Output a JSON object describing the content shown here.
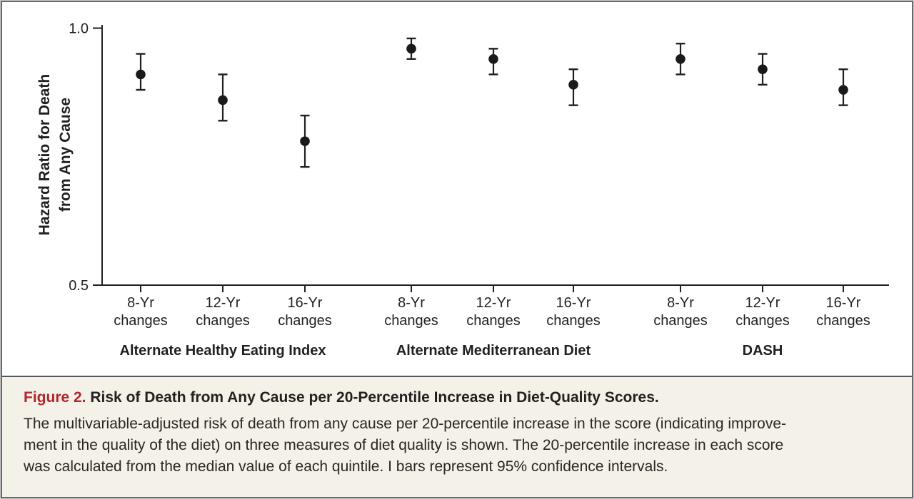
{
  "caption": {
    "label": "Figure 2.",
    "title": "Risk of Death from Any Cause per 20-Percentile Increase in Diet-Quality Scores.",
    "body_lines": [
      "The multivariable-adjusted risk of death from any cause per 20-percentile increase in the score (indicating improve-",
      "ment in the quality of the diet) on three measures of diet quality is shown. The 20-percentile increase in each score",
      "was calculated from the median value of each quintile. I bars represent 95% confidence intervals."
    ]
  },
  "chart_data": {
    "type": "scatter",
    "title": "Risk of Death from Any Cause per 20-Percentile Increase in Diet-Quality Scores",
    "ylabel_lines": [
      "Hazard Ratio for Death",
      "from Any Cause"
    ],
    "xlabel": "",
    "ylim": [
      0.5,
      1.0
    ],
    "yticks": [
      {
        "value": 1.0,
        "label": "1.0"
      },
      {
        "value": 0.5,
        "label": "0.5"
      }
    ],
    "grid": false,
    "legend": "none",
    "marker": "filled-circle",
    "error_bar_meaning": "95% confidence intervals",
    "groups": [
      {
        "name": "Alternate Healthy Eating Index",
        "points": [
          {
            "label": "8-Yr changes",
            "hr": 0.91,
            "ci_low": 0.88,
            "ci_high": 0.95
          },
          {
            "label": "12-Yr changes",
            "hr": 0.86,
            "ci_low": 0.82,
            "ci_high": 0.91
          },
          {
            "label": "16-Yr changes",
            "hr": 0.78,
            "ci_low": 0.73,
            "ci_high": 0.83
          }
        ]
      },
      {
        "name": "Alternate Mediterranean Diet",
        "points": [
          {
            "label": "8-Yr changes",
            "hr": 0.96,
            "ci_low": 0.94,
            "ci_high": 0.98
          },
          {
            "label": "12-Yr changes",
            "hr": 0.94,
            "ci_low": 0.91,
            "ci_high": 0.96
          },
          {
            "label": "16-Yr changes",
            "hr": 0.89,
            "ci_low": 0.85,
            "ci_high": 0.92
          }
        ]
      },
      {
        "name": "DASH",
        "points": [
          {
            "label": "8-Yr changes",
            "hr": 0.94,
            "ci_low": 0.91,
            "ci_high": 0.97
          },
          {
            "label": "12-Yr changes",
            "hr": 0.92,
            "ci_low": 0.89,
            "ci_high": 0.95
          },
          {
            "label": "16-Yr changes",
            "hr": 0.88,
            "ci_low": 0.85,
            "ci_high": 0.92
          }
        ]
      }
    ]
  },
  "colors": {
    "ink": "#231f20",
    "accent_red": "#b2252b",
    "caption_bg": "#f4f1e8",
    "frame_gray": "#67696c",
    "divider_gray": "#55565a"
  }
}
